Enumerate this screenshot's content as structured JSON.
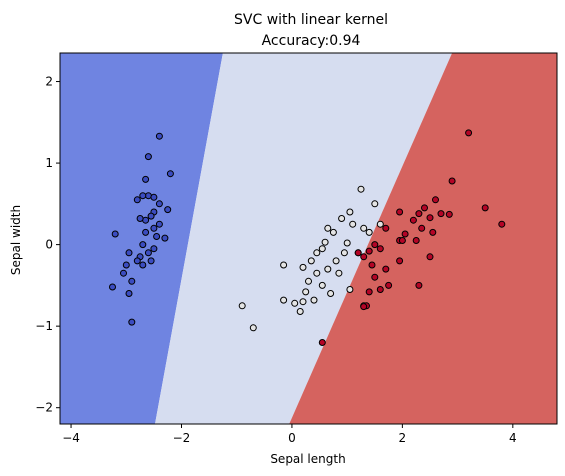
{
  "chart_data": {
    "type": "scatter",
    "title": "SVC with linear kernel",
    "subtitle": "Accuracy:0.94",
    "xlabel": "Sepal length",
    "ylabel": "Sepal width",
    "xlim": [
      -4.2,
      4.8
    ],
    "ylim": [
      -2.2,
      2.35
    ],
    "xticks": [
      -4,
      -2,
      0,
      2,
      4
    ],
    "yticks": [
      -2,
      -1,
      0,
      1,
      2
    ],
    "grid": false,
    "regions": [
      {
        "class": 0,
        "color": "#6f84e1",
        "polygon": [
          [
            -4.2,
            -2.2
          ],
          [
            -2.48,
            -2.2
          ],
          [
            -1.25,
            2.35
          ],
          [
            -4.2,
            2.35
          ]
        ]
      },
      {
        "class": 1,
        "color": "#d6ddf0",
        "polygon": [
          [
            -2.48,
            -2.2
          ],
          [
            -0.05,
            -2.2
          ],
          [
            2.9,
            2.35
          ],
          [
            -1.25,
            2.35
          ]
        ]
      },
      {
        "class": 2,
        "color": "#d5635f",
        "polygon": [
          [
            -0.05,
            -2.2
          ],
          [
            4.8,
            -2.2
          ],
          [
            4.8,
            2.35
          ],
          [
            2.9,
            2.35
          ]
        ]
      }
    ],
    "series": [
      {
        "class": 0,
        "color": "#3b4cc0",
        "points": [
          [
            -2.4,
            1.33
          ],
          [
            -2.6,
            1.08
          ],
          [
            -2.65,
            0.8
          ],
          [
            -2.2,
            0.87
          ],
          [
            -2.6,
            0.6
          ],
          [
            -2.7,
            0.6
          ],
          [
            -2.5,
            0.58
          ],
          [
            -2.4,
            0.5
          ],
          [
            -2.8,
            0.55
          ],
          [
            -2.5,
            0.4
          ],
          [
            -2.55,
            0.35
          ],
          [
            -2.65,
            0.3
          ],
          [
            -2.75,
            0.32
          ],
          [
            -2.25,
            0.43
          ],
          [
            -2.4,
            0.25
          ],
          [
            -2.5,
            0.2
          ],
          [
            -2.65,
            0.15
          ],
          [
            -2.45,
            0.1
          ],
          [
            -2.3,
            0.08
          ],
          [
            -2.7,
            0.0
          ],
          [
            -2.5,
            -0.05
          ],
          [
            -2.95,
            -0.1
          ],
          [
            -2.6,
            -0.1
          ],
          [
            -2.75,
            -0.15
          ],
          [
            -2.8,
            -0.2
          ],
          [
            -2.55,
            -0.2
          ],
          [
            -2.7,
            -0.25
          ],
          [
            -3.0,
            -0.25
          ],
          [
            -3.2,
            0.13
          ],
          [
            -3.05,
            -0.35
          ],
          [
            -2.9,
            -0.45
          ],
          [
            -3.25,
            -0.52
          ],
          [
            -2.95,
            -0.6
          ],
          [
            -2.9,
            -0.95
          ]
        ]
      },
      {
        "class": 1,
        "color": "#e4e4e4",
        "points": [
          [
            1.25,
            0.68
          ],
          [
            1.05,
            0.4
          ],
          [
            1.5,
            0.5
          ],
          [
            0.9,
            0.32
          ],
          [
            1.6,
            0.25
          ],
          [
            1.1,
            0.25
          ],
          [
            0.75,
            0.15
          ],
          [
            0.65,
            0.2
          ],
          [
            1.3,
            0.2
          ],
          [
            1.4,
            0.15
          ],
          [
            0.6,
            0.03
          ],
          [
            1.0,
            0.02
          ],
          [
            0.55,
            -0.05
          ],
          [
            0.95,
            -0.1
          ],
          [
            0.45,
            -0.1
          ],
          [
            1.2,
            -0.1
          ],
          [
            0.8,
            -0.2
          ],
          [
            0.35,
            -0.2
          ],
          [
            0.65,
            -0.3
          ],
          [
            -0.15,
            -0.25
          ],
          [
            0.2,
            -0.28
          ],
          [
            0.45,
            -0.35
          ],
          [
            0.85,
            -0.35
          ],
          [
            0.3,
            -0.45
          ],
          [
            0.55,
            -0.5
          ],
          [
            1.05,
            -0.55
          ],
          [
            0.25,
            -0.58
          ],
          [
            0.7,
            -0.6
          ],
          [
            0.4,
            -0.68
          ],
          [
            0.2,
            -0.7
          ],
          [
            0.05,
            -0.72
          ],
          [
            -0.15,
            -0.68
          ],
          [
            -0.9,
            -0.75
          ],
          [
            0.15,
            -0.82
          ],
          [
            -0.7,
            -1.02
          ],
          [
            1.3,
            -0.75
          ]
        ]
      },
      {
        "class": 2,
        "color": "#b40426",
        "points": [
          [
            3.2,
            1.37
          ],
          [
            2.9,
            0.78
          ],
          [
            2.6,
            0.55
          ],
          [
            1.95,
            0.4
          ],
          [
            2.4,
            0.45
          ],
          [
            2.3,
            0.38
          ],
          [
            2.5,
            0.33
          ],
          [
            2.2,
            0.3
          ],
          [
            2.85,
            0.37
          ],
          [
            2.7,
            0.38
          ],
          [
            3.5,
            0.45
          ],
          [
            3.8,
            0.25
          ],
          [
            1.7,
            0.2
          ],
          [
            2.35,
            0.2
          ],
          [
            2.05,
            0.13
          ],
          [
            2.55,
            0.15
          ],
          [
            2.25,
            0.05
          ],
          [
            1.95,
            0.05
          ],
          [
            1.5,
            0.0
          ],
          [
            1.6,
            -0.05
          ],
          [
            2.0,
            0.05
          ],
          [
            1.4,
            -0.08
          ],
          [
            1.3,
            -0.15
          ],
          [
            1.2,
            -0.1
          ],
          [
            1.45,
            -0.25
          ],
          [
            1.95,
            -0.2
          ],
          [
            2.5,
            -0.15
          ],
          [
            1.7,
            -0.3
          ],
          [
            1.5,
            -0.4
          ],
          [
            2.3,
            -0.5
          ],
          [
            1.75,
            -0.5
          ],
          [
            1.6,
            -0.55
          ],
          [
            1.4,
            -0.58
          ],
          [
            1.35,
            -0.75
          ],
          [
            1.3,
            -0.76
          ],
          [
            0.55,
            -1.2
          ]
        ]
      }
    ]
  }
}
